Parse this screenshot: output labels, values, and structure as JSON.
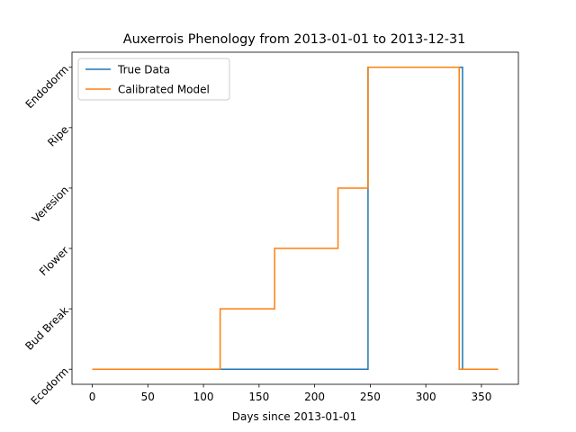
{
  "chart_data": {
    "type": "line",
    "title": "Auxerrois Phenology from 2013-01-01 to 2013-12-31",
    "x_label": "Days since 2013-01-01",
    "xlim": [
      -18.25,
      383.25
    ],
    "xticks": [
      0,
      50,
      100,
      150,
      200,
      250,
      300,
      350
    ],
    "ylim": [
      -0.25,
      5.25
    ],
    "yticks": [
      {
        "value": 0,
        "label": "Ecodorm"
      },
      {
        "value": 1,
        "label": "Bud Break"
      },
      {
        "value": 2,
        "label": "Flower"
      },
      {
        "value": 3,
        "label": "Veresion"
      },
      {
        "value": 4,
        "label": "Ripe"
      },
      {
        "value": 5,
        "label": "Endodorm"
      }
    ],
    "legend": "upper left",
    "series": [
      {
        "name": "True Data",
        "color": "#1f77b4",
        "x": [
          0,
          248,
          248,
          333,
          333,
          365
        ],
        "values": [
          0,
          0,
          5,
          5,
          0,
          0
        ]
      },
      {
        "name": "Calibrated Model",
        "color": "#ff7f0e",
        "x": [
          0,
          115,
          115,
          164,
          164,
          221,
          221,
          248,
          248,
          330,
          330,
          365
        ],
        "values": [
          0,
          0,
          1,
          1,
          2,
          2,
          3,
          3,
          5,
          5,
          0,
          0
        ]
      }
    ]
  }
}
